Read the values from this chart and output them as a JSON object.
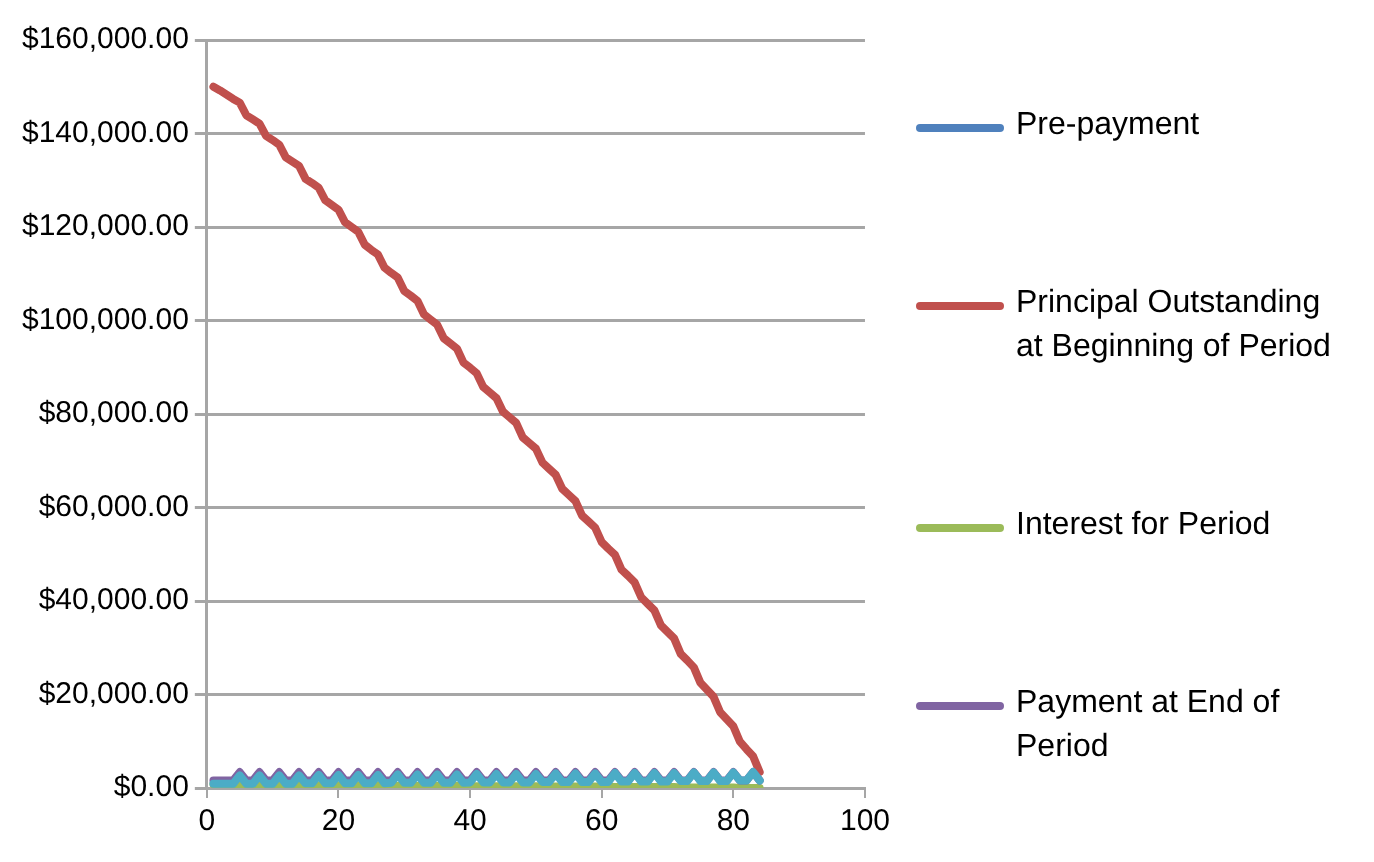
{
  "chart_data": {
    "type": "line",
    "legend": "right",
    "grid": "y",
    "marker": "none",
    "line_style": "solid",
    "x": [
      1,
      2,
      3,
      4,
      5,
      6,
      7,
      8,
      9,
      10,
      11,
      12,
      13,
      14,
      15,
      16,
      17,
      18,
      19,
      20,
      21,
      22,
      23,
      24,
      25,
      26,
      27,
      28,
      29,
      30,
      31,
      32,
      33,
      34,
      35,
      36,
      37,
      38,
      39,
      40,
      41,
      42,
      43,
      44,
      45,
      46,
      47,
      48,
      49,
      50,
      51,
      52,
      53,
      54,
      55,
      56,
      57,
      58,
      59,
      60,
      61,
      62,
      63,
      64,
      65,
      66,
      67,
      68,
      69,
      70,
      71,
      72,
      73,
      74,
      75,
      76,
      77,
      78,
      79,
      80,
      81,
      82,
      83,
      84
    ],
    "xlim": [
      0,
      100
    ],
    "xticks": [
      0,
      20,
      40,
      60,
      80,
      100
    ],
    "ylim": [
      0,
      160000
    ],
    "yticks": [
      {
        "value": 0,
        "label": "$0.00"
      },
      {
        "value": 20000,
        "label": "$20,000.00"
      },
      {
        "value": 40000,
        "label": "$40,000.00"
      },
      {
        "value": 60000,
        "label": "$60,000.00"
      },
      {
        "value": 80000,
        "label": "$80,000.00"
      },
      {
        "value": 100000,
        "label": "$100,000.00"
      },
      {
        "value": 120000,
        "label": "$120,000.00"
      },
      {
        "value": 140000,
        "label": "$140,000.00"
      },
      {
        "value": 160000,
        "label": "$160,000.00"
      }
    ],
    "series": [
      {
        "name": "Pre-payment",
        "color": "#4f81bd",
        "values": [
          null,
          null,
          null,
          null,
          null,
          null,
          null,
          null,
          null,
          null,
          null,
          null,
          null,
          null,
          null,
          null,
          null,
          null,
          null,
          null,
          null,
          null,
          null,
          null,
          null,
          null,
          null,
          null,
          null,
          null,
          null,
          null,
          null,
          null,
          null,
          null,
          null,
          null,
          null,
          null,
          null,
          null,
          null,
          null,
          null,
          null,
          null,
          null,
          null,
          null,
          null,
          null,
          null,
          null,
          null,
          null,
          null,
          null,
          null,
          null,
          null,
          null,
          null,
          null,
          null,
          null,
          null,
          null,
          null,
          null,
          null,
          null,
          null,
          null,
          null,
          null,
          null,
          null,
          null,
          null,
          null,
          null,
          null,
          null
        ]
      },
      {
        "name": "Principal Outstanding at Beginning of Period",
        "color": "#c0504d",
        "values": [
          150000,
          149200,
          148300,
          147400,
          146600,
          143900,
          143000,
          142100,
          139500,
          138600,
          137600,
          134900,
          134000,
          133100,
          130300,
          129400,
          128400,
          125700,
          124700,
          123700,
          121000,
          120000,
          119000,
          116200,
          115100,
          114100,
          111300,
          110200,
          109200,
          106300,
          105300,
          104200,
          101300,
          100200,
          99100,
          96200,
          95100,
          94000,
          91000,
          89900,
          88700,
          85800,
          84600,
          83400,
          80500,
          79300,
          78100,
          75000,
          73800,
          72600,
          69600,
          68300,
          67000,
          64000,
          62700,
          61400,
          58300,
          57000,
          55700,
          52600,
          51200,
          49900,
          46700,
          45400,
          44000,
          40800,
          39400,
          38000,
          34800,
          33400,
          32000,
          28700,
          27300,
          25800,
          22500,
          21000,
          19500,
          16200,
          14700,
          13200,
          9900,
          8300,
          6800,
          3400
        ]
      },
      {
        "name": "Interest for Period",
        "color": "#9bbb59",
        "values": [
          800,
          700,
          700,
          700,
          700,
          700,
          700,
          700,
          700,
          700,
          700,
          700,
          700,
          700,
          700,
          600,
          600,
          600,
          600,
          600,
          600,
          600,
          600,
          600,
          600,
          600,
          600,
          600,
          500,
          500,
          500,
          500,
          500,
          500,
          500,
          500,
          500,
          500,
          500,
          400,
          400,
          400,
          400,
          400,
          400,
          400,
          400,
          400,
          400,
          400,
          300,
          300,
          300,
          300,
          300,
          300,
          300,
          300,
          300,
          300,
          300,
          200,
          200,
          200,
          200,
          200,
          200,
          200,
          200,
          200,
          200,
          100,
          100,
          100,
          100,
          100,
          100,
          100,
          100,
          100,
          0,
          0,
          0,
          0
        ]
      },
      {
        "name": "Payment at End of Period",
        "color": "#8064a2",
        "values": [
          1600,
          1600,
          1600,
          1600,
          3400,
          1600,
          1600,
          3400,
          1600,
          1600,
          3400,
          1600,
          1600,
          3400,
          1600,
          1600,
          3400,
          1600,
          1600,
          3400,
          1600,
          1600,
          3400,
          1600,
          1600,
          3400,
          1600,
          1600,
          3400,
          1600,
          1600,
          3400,
          1600,
          1600,
          3400,
          1600,
          1600,
          3400,
          1600,
          1600,
          3400,
          1600,
          1600,
          3400,
          1600,
          1600,
          3400,
          1600,
          1600,
          3400,
          1600,
          1600,
          3400,
          1600,
          1600,
          3400,
          1600,
          1600,
          3400,
          1600,
          1600,
          3400,
          1600,
          1600,
          3400,
          1600,
          1600,
          3400,
          1600,
          1600,
          3400,
          1600,
          1600,
          3400,
          1600,
          1600,
          3400,
          1600,
          1600,
          3400,
          1600,
          1600,
          3400,
          1600
        ]
      },
      {
        "color": "#4bacc6",
        "values": [
          900,
          900,
          900,
          900,
          2700,
          900,
          900,
          2700,
          900,
          900,
          2700,
          900,
          900,
          2700,
          1000,
          1000,
          2800,
          1000,
          1000,
          2800,
          1000,
          1000,
          2800,
          1000,
          1000,
          2800,
          1000,
          1100,
          2900,
          1100,
          1100,
          2900,
          1100,
          1100,
          2900,
          1100,
          1100,
          2900,
          1100,
          1200,
          3000,
          1200,
          1200,
          3000,
          1200,
          1200,
          3000,
          1200,
          1200,
          3000,
          1300,
          1300,
          3100,
          1300,
          1300,
          3100,
          1300,
          1300,
          3100,
          1300,
          1300,
          3200,
          1400,
          1400,
          3200,
          1400,
          1400,
          3200,
          1400,
          1400,
          3200,
          1500,
          1500,
          3300,
          1500,
          1500,
          3300,
          1500,
          1500,
          3300,
          1600,
          1600,
          3400,
          1600
        ]
      }
    ]
  }
}
